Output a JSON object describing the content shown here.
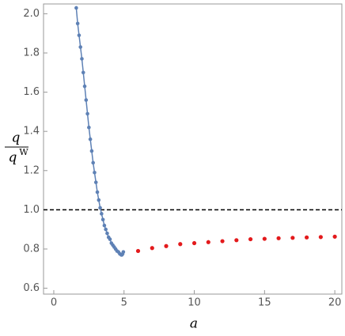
{
  "chart_data": {
    "type": "scatter",
    "xlabel": "a",
    "ylabel": {
      "numerator": "q",
      "denominator": "q",
      "superscript": "W"
    },
    "xlim": [
      -0.73,
      20.5
    ],
    "ylim": [
      0.57,
      2.05
    ],
    "xticks": [
      0,
      5,
      10,
      15,
      20
    ],
    "yticks": [
      0.6,
      0.8,
      {
        "value": 1,
        "label": "1.0"
      },
      1.2,
      1.4,
      1.6,
      1.8,
      {
        "value": 2,
        "label": "2.0"
      }
    ],
    "reference_line": {
      "value": 1,
      "color": "#000000"
    },
    "series": [
      {
        "color": "#5e81b5",
        "line": true,
        "x": [
          1.6,
          1.7,
          1.8,
          1.9,
          2.0,
          2.1,
          2.2,
          2.3,
          2.4,
          2.5,
          2.6,
          2.7,
          2.8,
          2.9,
          3.0,
          3.1,
          3.2,
          3.3,
          3.4,
          3.5,
          3.6,
          3.7,
          3.8,
          3.9,
          4.0,
          4.1,
          4.2,
          4.3,
          4.4,
          4.5,
          4.6,
          4.7,
          4.8,
          4.85,
          4.9,
          4.95
        ],
        "values": [
          2.03,
          1.95,
          1.89,
          1.83,
          1.77,
          1.7,
          1.63,
          1.56,
          1.49,
          1.42,
          1.36,
          1.3,
          1.24,
          1.19,
          1.14,
          1.09,
          1.05,
          1.01,
          0.98,
          0.95,
          0.92,
          0.9,
          0.88,
          0.86,
          0.85,
          0.83,
          0.82,
          0.81,
          0.8,
          0.79,
          0.785,
          0.775,
          0.77,
          0.77,
          0.775,
          0.785
        ]
      },
      {
        "color": "#e31a1c",
        "line": false,
        "x": [
          6,
          7,
          8,
          9,
          10,
          11,
          12,
          13,
          14,
          15,
          16,
          17,
          18,
          19,
          20
        ],
        "values": [
          0.79,
          0.805,
          0.815,
          0.825,
          0.83,
          0.835,
          0.84,
          0.845,
          0.85,
          0.852,
          0.855,
          0.857,
          0.859,
          0.861,
          0.863
        ]
      }
    ]
  }
}
